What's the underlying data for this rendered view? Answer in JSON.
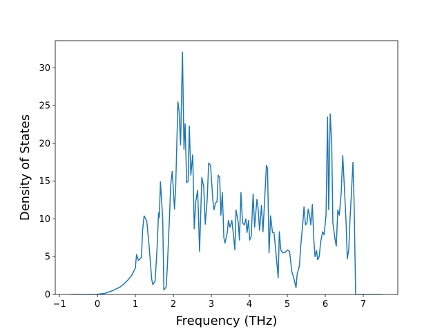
{
  "chart_data": {
    "type": "line",
    "xlabel": "Frequency (THz)",
    "ylabel": "Density of States",
    "xlim": [
      -1.11,
      7.91
    ],
    "ylim": [
      0,
      33.6
    ],
    "xticks": [
      {
        "value": -1,
        "label": "−1"
      },
      0,
      1,
      2,
      3,
      4,
      5,
      6,
      7
    ],
    "yticks": [
      0,
      5,
      10,
      15,
      20,
      25,
      30
    ],
    "grid": false,
    "series": [
      {
        "color": "#1f77b4",
        "x": [
          -0.7,
          -0.2,
          0,
          0.2,
          0.4,
          0.6,
          0.7,
          0.8,
          0.9,
          0.95,
          1.0,
          1.03,
          1.08,
          1.16,
          1.19,
          1.23,
          1.3,
          1.36,
          1.43,
          1.46,
          1.52,
          1.57,
          1.61,
          1.63,
          1.66,
          1.72,
          1.75,
          1.81,
          1.84,
          1.9,
          1.93,
          1.97,
          2.03,
          2.06,
          2.12,
          2.15,
          2.19,
          2.24,
          2.28,
          2.31,
          2.35,
          2.39,
          2.42,
          2.46,
          2.51,
          2.55,
          2.59,
          2.64,
          2.69,
          2.75,
          2.8,
          2.84,
          2.89,
          2.93,
          2.98,
          3.04,
          3.07,
          3.11,
          3.15,
          3.18,
          3.22,
          3.25,
          3.29,
          3.33,
          3.36,
          3.42,
          3.45,
          3.49,
          3.54,
          3.58,
          3.62,
          3.65,
          3.71,
          3.74,
          3.78,
          3.82,
          3.87,
          3.91,
          3.94,
          3.98,
          4.01,
          4.05,
          4.1,
          4.14,
          4.2,
          4.23,
          4.27,
          4.32,
          4.36,
          4.41,
          4.45,
          4.48,
          4.52,
          4.56,
          4.61,
          4.65,
          4.7,
          4.76,
          4.79,
          4.83,
          4.88,
          4.95,
          5.01,
          5.06,
          5.12,
          5.17,
          5.23,
          5.26,
          5.32,
          5.35,
          5.41,
          5.44,
          5.48,
          5.52,
          5.55,
          5.59,
          5.62,
          5.66,
          5.7,
          5.73,
          5.77,
          5.8,
          5.84,
          5.88,
          5.93,
          5.97,
          6.02,
          6.06,
          6.09,
          6.13,
          6.17,
          6.2,
          6.26,
          6.29,
          6.33,
          6.37,
          6.42,
          6.46,
          6.49,
          6.55,
          6.58,
          6.62,
          6.65,
          6.69,
          6.73,
          6.76,
          6.8,
          7.0,
          7.5
        ],
        "values": [
          0,
          0,
          0.02,
          0.15,
          0.5,
          1.0,
          1.4,
          1.9,
          2.5,
          3.0,
          3.5,
          5.3,
          4.5,
          4.9,
          8.5,
          10.4,
          9.7,
          6.5,
          2.0,
          1.3,
          1.8,
          6,
          10.8,
          10.2,
          14.9,
          10,
          0.6,
          1.0,
          3.5,
          10.5,
          14.5,
          16.3,
          11.3,
          14,
          25.5,
          24.3,
          19.8,
          32.1,
          19.2,
          22.6,
          14.8,
          15,
          22.3,
          15.8,
          18.5,
          8.7,
          12.3,
          13.8,
          5.7,
          15.5,
          14.2,
          9.3,
          12.5,
          17.4,
          17.1,
          12.5,
          11.2,
          12.1,
          12.3,
          15.8,
          15.5,
          10.5,
          13.5,
          7.5,
          6.8,
          8.2,
          9.8,
          8.9,
          9.8,
          8.0,
          5.9,
          11.2,
          9.5,
          7.2,
          13.5,
          9.5,
          9.2,
          10,
          8.2,
          9.8,
          7.2,
          7.7,
          13.3,
          8.9,
          12.6,
          11.5,
          8.5,
          11.8,
          8.3,
          13.1,
          17.1,
          16.7,
          5.5,
          10.4,
          8.2,
          8.2,
          5.6,
          2.2,
          8.3,
          5.9,
          5.5,
          5.6,
          5.9,
          5.7,
          3.0,
          2.2,
          0.9,
          2.7,
          3.8,
          6.2,
          9.5,
          11.6,
          9.2,
          9.5,
          11.3,
          10.4,
          9.2,
          11.9,
          7.2,
          5.0,
          5.8,
          4.6,
          5.0,
          7.0,
          8.3,
          7.9,
          10.5,
          23.5,
          11.2,
          23.9,
          20,
          9.5,
          7.2,
          6.4,
          11.2,
          10.5,
          13.5,
          18.4,
          15.5,
          9.3,
          4.7,
          6.0,
          9.8,
          13.5,
          17.5,
          12,
          0,
          0,
          0
        ]
      }
    ]
  }
}
